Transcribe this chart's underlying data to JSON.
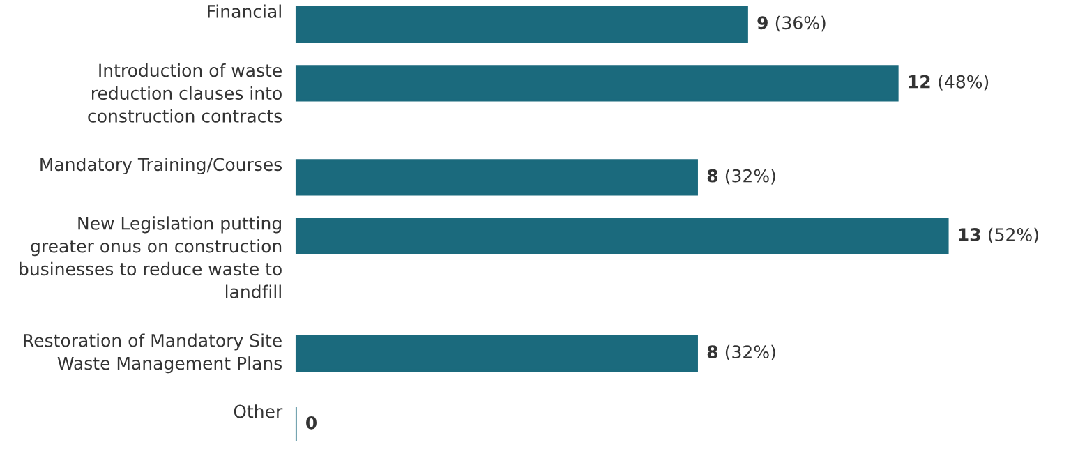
{
  "chart_data": {
    "type": "bar",
    "orientation": "horizontal",
    "categories": [
      "Financial",
      "Introduction of waste reduction clauses into construction contracts",
      "Mandatory Training/Courses",
      "New Legislation putting greater onus on construction businesses to reduce waste to landfill",
      "Restoration of Mandatory Site Waste Management Plans",
      "Other"
    ],
    "values": [
      9,
      12,
      8,
      13,
      8,
      0
    ],
    "value_labels": [
      "9 (36%)",
      "12 (48%)",
      "8 (32%)",
      "13 (52%)",
      "8 (32%)",
      "0"
    ],
    "color": "#1b6a7d"
  }
}
